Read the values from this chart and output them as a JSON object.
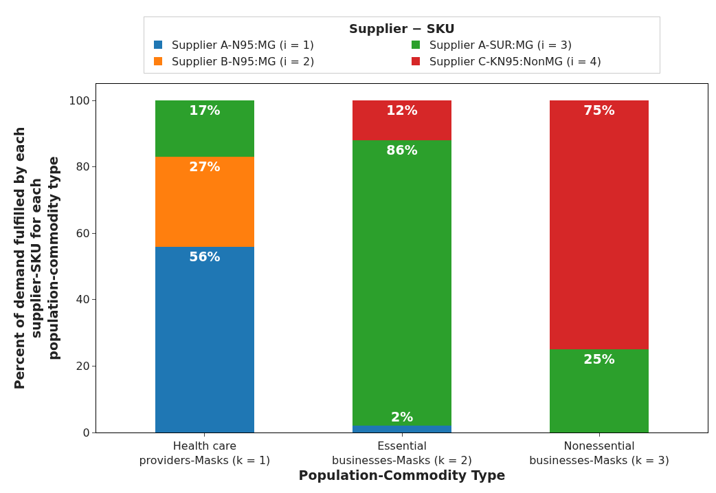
{
  "chart_data": {
    "type": "bar",
    "stacked": true,
    "xlabel": "Population-Commodity Type",
    "ylabel": "Percent of demand fulfilled by each\nsupplier-SKU for each\npopulation-commodity type",
    "legend_title": "Supplier − SKU",
    "legend": "top",
    "categories": [
      "Health care\nproviders-Masks (k = 1)",
      "Essential\nbusinesses-Masks (k = 2)",
      "Nonessential\nbusinesses-Masks (k = 3)"
    ],
    "series": [
      {
        "name": "Supplier A-N95:MG (i = 1)",
        "color": "#1f77b4",
        "values": [
          56,
          2,
          null
        ],
        "value_labels": [
          "56%",
          "2%",
          null
        ]
      },
      {
        "name": "Supplier B-N95:MG (i = 2)",
        "color": "#ff7f0e",
        "values": [
          27,
          null,
          null
        ],
        "value_labels": [
          "27%",
          null,
          null
        ]
      },
      {
        "name": "Supplier A-SUR:MG (i = 3)",
        "color": "#2ca02c",
        "values": [
          17,
          86,
          25
        ],
        "value_labels": [
          "17%",
          "86%",
          "25%"
        ]
      },
      {
        "name": "Supplier C-KN95:NonMG (i = 4)",
        "color": "#d62728",
        "values": [
          null,
          12,
          75
        ],
        "value_labels": [
          null,
          "12%",
          "75%"
        ]
      }
    ],
    "ylim": [
      0,
      105
    ],
    "yticks": [
      0,
      20,
      40,
      60,
      80,
      100
    ],
    "grid": false
  }
}
